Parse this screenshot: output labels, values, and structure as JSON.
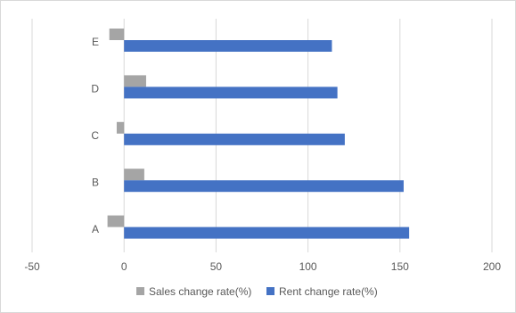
{
  "chart_data": {
    "type": "bar",
    "orientation": "horizontal",
    "title": "",
    "xlabel": "",
    "ylabel": "",
    "categories": [
      "A",
      "B",
      "C",
      "D",
      "E"
    ],
    "series": [
      {
        "name": "Sales change rate(%)",
        "color": "#a5a5a5",
        "values": [
          -9,
          11,
          -4,
          12,
          -8
        ]
      },
      {
        "name": "Rent change rate(%)",
        "color": "#4472c4",
        "values": [
          155,
          152,
          120,
          116,
          113
        ]
      }
    ],
    "xlim": [
      -50,
      200
    ],
    "xticks": [
      "-50",
      "0",
      "50",
      "100",
      "150",
      "200"
    ],
    "grid": true,
    "legend": "bottom"
  }
}
